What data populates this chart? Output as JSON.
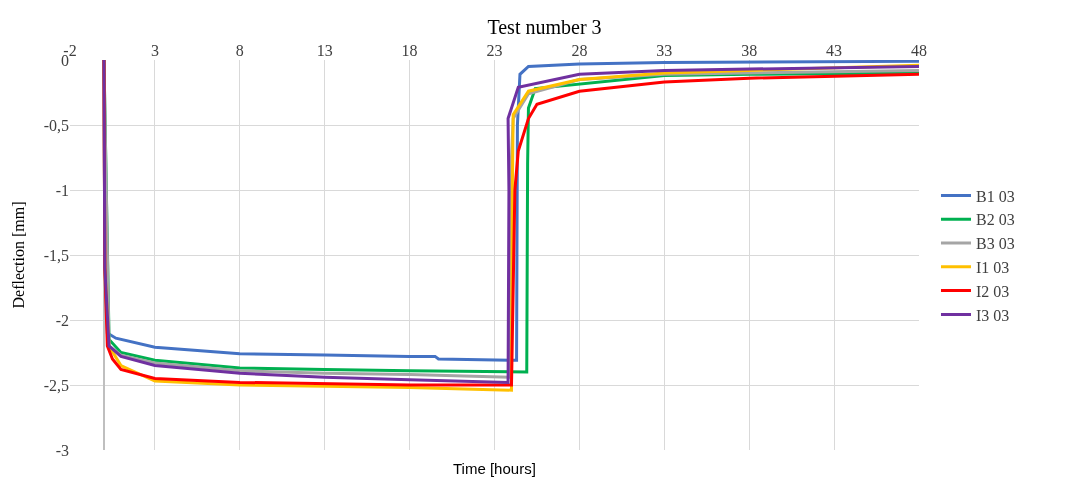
{
  "chart_data": {
    "type": "line",
    "title": "Test number 3",
    "xlabel": "Time [hours]",
    "ylabel": "Deflection [mm]",
    "xlim": [
      -2,
      48
    ],
    "xticks": [
      -2,
      3,
      8,
      13,
      18,
      23,
      28,
      33,
      38,
      43,
      48
    ],
    "ylim": [
      -3,
      0
    ],
    "yticks": [
      0,
      {
        "value": -0.5,
        "label": "-0,5"
      },
      -1,
      {
        "value": -1.5,
        "label": "-1,5"
      },
      -2,
      {
        "value": -2.5,
        "label": "-2,5"
      },
      -3
    ],
    "grid": true,
    "legend": "right",
    "marker": "none",
    "line_style": "solid",
    "series": [
      {
        "name": "B1 03",
        "color": "#4472c4",
        "x": [
          0,
          0.05,
          0.2,
          0.7,
          3,
          8,
          13,
          18,
          19.5,
          19.7,
          24.3,
          24.35,
          24.5,
          25,
          28,
          33,
          48
        ],
        "values": [
          0,
          -1.5,
          -2.1,
          -2.14,
          -2.21,
          -2.26,
          -2.27,
          -2.28,
          -2.28,
          -2.3,
          -2.31,
          -0.5,
          -0.11,
          -0.05,
          -0.03,
          -0.02,
          -0.01
        ]
      },
      {
        "name": "B2 03",
        "color": "#00b050",
        "x": [
          0,
          0.05,
          0.3,
          1,
          3,
          8,
          13,
          18,
          24.9,
          24.95,
          25,
          25.4,
          28,
          33,
          38,
          48
        ],
        "values": [
          0,
          null,
          -2.15,
          -2.25,
          -2.31,
          -2.37,
          -2.38,
          -2.39,
          -2.4,
          -0.8,
          -0.37,
          -0.22,
          null,
          -0.12,
          -0.11,
          -0.1
        ]
      },
      {
        "name": "B3 03",
        "color": "#a5a5a5",
        "x": [
          0,
          0.05,
          0.3,
          1,
          3,
          8,
          13,
          18,
          23.9,
          23.95,
          24.1,
          25,
          28,
          33,
          48
        ],
        "values": [
          0,
          null,
          -2.2,
          -2.27,
          -2.33,
          -2.39,
          -2.41,
          -2.42,
          -2.44,
          -0.9,
          -0.45,
          -0.26,
          -0.15,
          -0.11,
          -0.08
        ]
      },
      {
        "name": "I1 03",
        "color": "#ffc000",
        "x": [
          0,
          0.05,
          0.3,
          1,
          3,
          8,
          13,
          18,
          24,
          24.05,
          24.1,
          25,
          28,
          33,
          48
        ],
        "values": [
          0,
          -1.6,
          -2.2,
          -2.35,
          -2.47,
          -2.5,
          -2.51,
          -2.52,
          -2.54,
          -1.0,
          -0.42,
          -0.24,
          -0.15,
          -0.1,
          -0.04
        ]
      },
      {
        "name": "I2 03",
        "color": "#ff0000",
        "x": [
          0,
          0.05,
          0.2,
          0.5,
          1,
          3,
          8,
          18,
          24,
          24.2,
          24.4,
          25,
          25.5,
          28,
          33,
          38,
          48
        ],
        "values": [
          0,
          -1.6,
          -2.2,
          -2.3,
          -2.38,
          -2.45,
          -2.48,
          -2.5,
          -2.5,
          -1.0,
          -0.7,
          -0.45,
          -0.34,
          -0.24,
          -0.17,
          -0.14,
          -0.11
        ]
      },
      {
        "name": "I3 03",
        "color": "#7030a0",
        "x": [
          0,
          0.05,
          0.3,
          1,
          3,
          8,
          13,
          18,
          23.8,
          23.85,
          23.8,
          24.4,
          28,
          33,
          48
        ],
        "values": [
          0,
          -1.6,
          -2.2,
          -2.28,
          -2.35,
          -2.41,
          -2.44,
          -2.46,
          -2.48,
          -1.0,
          -0.45,
          -0.21,
          -0.11,
          -0.08,
          -0.05
        ]
      }
    ]
  }
}
